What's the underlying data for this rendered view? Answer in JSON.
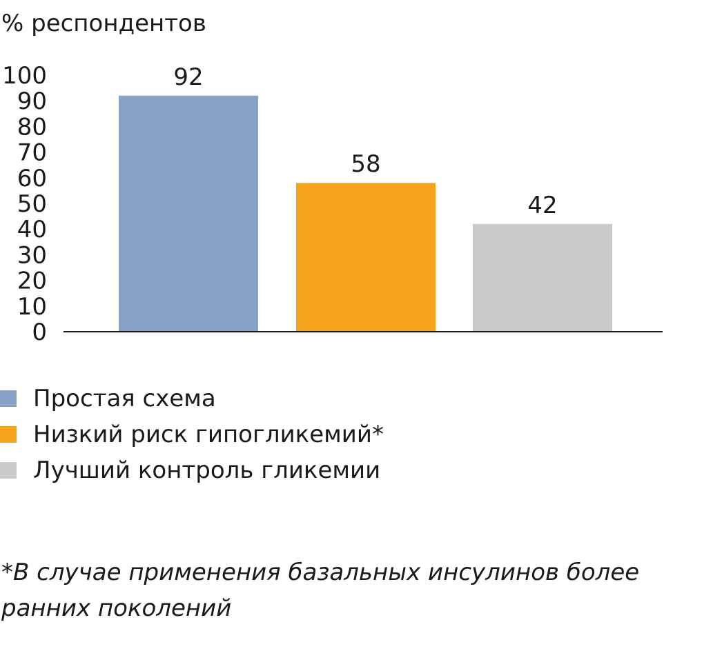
{
  "chart_data": {
    "type": "bar",
    "title": "",
    "xlabel": "",
    "ylabel": "% респондентов",
    "ylim": [
      0,
      100
    ],
    "yticks": [
      "0",
      "10",
      "20",
      "30",
      "40",
      "50",
      "60",
      "70",
      "80",
      "90",
      "100"
    ],
    "categories": [
      "Простая схема",
      "Низкий риск гипогликемий*",
      "Лучший контроль гликемии"
    ],
    "values": [
      92,
      58,
      42
    ],
    "data_labels": [
      "92",
      "58",
      "42"
    ],
    "colors": [
      "#8aa1c6",
      "#f5a31c",
      "#c9cacc"
    ],
    "grid": false,
    "legend_placement": "bottom-left",
    "legend": [
      {
        "label": "Простая схема",
        "color": "#8aa1c6"
      },
      {
        "label": "Низкий риск гипогликемий*",
        "color": "#f5a31c"
      },
      {
        "label": "Лучший контроль гликемии",
        "color": "#c9cacc"
      }
    ]
  },
  "footnote": "*В случае применения базальных инсулинов более ранних поколений",
  "colors": {
    "axis": "#1a1a1a",
    "text": "#1a1a1a",
    "background": "#ffffff"
  }
}
